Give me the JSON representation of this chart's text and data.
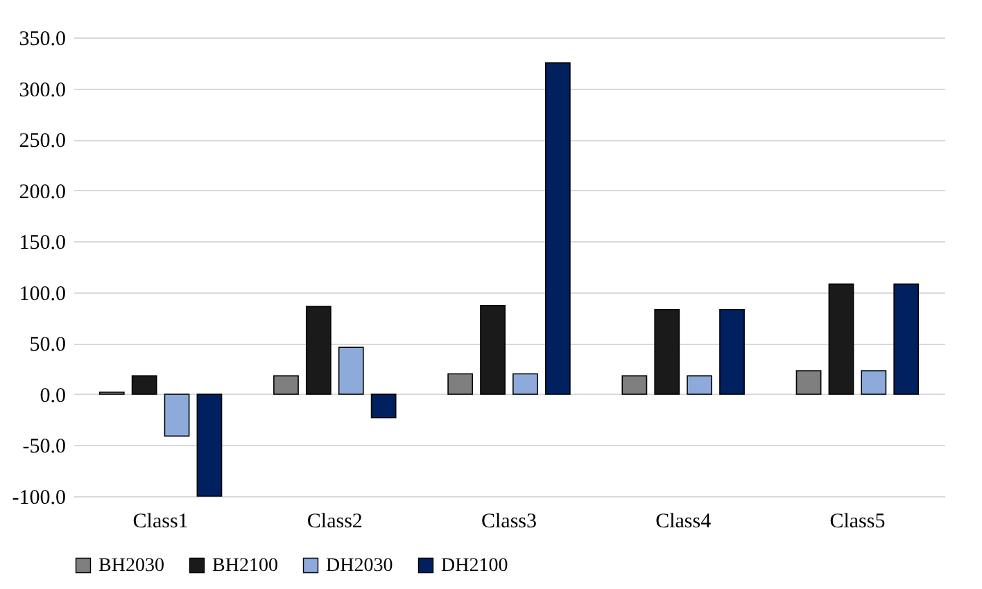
{
  "chart_data": {
    "type": "bar",
    "categories": [
      "Class1",
      "Class2",
      "Class3",
      "Class4",
      "Class5"
    ],
    "series": [
      {
        "name": "BH2030",
        "color": "#7f7f7f",
        "values": [
          2,
          18,
          20,
          18,
          23
        ]
      },
      {
        "name": "BH2100",
        "color": "#1a1a1a",
        "values": [
          18,
          86,
          87,
          83,
          108
        ]
      },
      {
        "name": "DH2030",
        "color": "#8eaadb",
        "values": [
          -41,
          46,
          20,
          18,
          23
        ]
      },
      {
        "name": "DH2100",
        "color": "#002060",
        "values": [
          -100,
          -23,
          325,
          83,
          108
        ]
      }
    ],
    "ylim": [
      -100,
      350
    ],
    "yticks": [
      {
        "value": -100,
        "label": "-100.0"
      },
      {
        "value": -50,
        "label": "-50.0"
      },
      {
        "value": 0,
        "label": "0.0"
      },
      {
        "value": 50,
        "label": "50.0"
      },
      {
        "value": 100,
        "label": "100.0"
      },
      {
        "value": 150,
        "label": "150.0"
      },
      {
        "value": 200,
        "label": "200.0"
      },
      {
        "value": 250,
        "label": "250.0"
      },
      {
        "value": 300,
        "label": "300.0"
      },
      {
        "value": 350,
        "label": "350.0"
      }
    ],
    "grid": "y",
    "legend": "bottom"
  }
}
